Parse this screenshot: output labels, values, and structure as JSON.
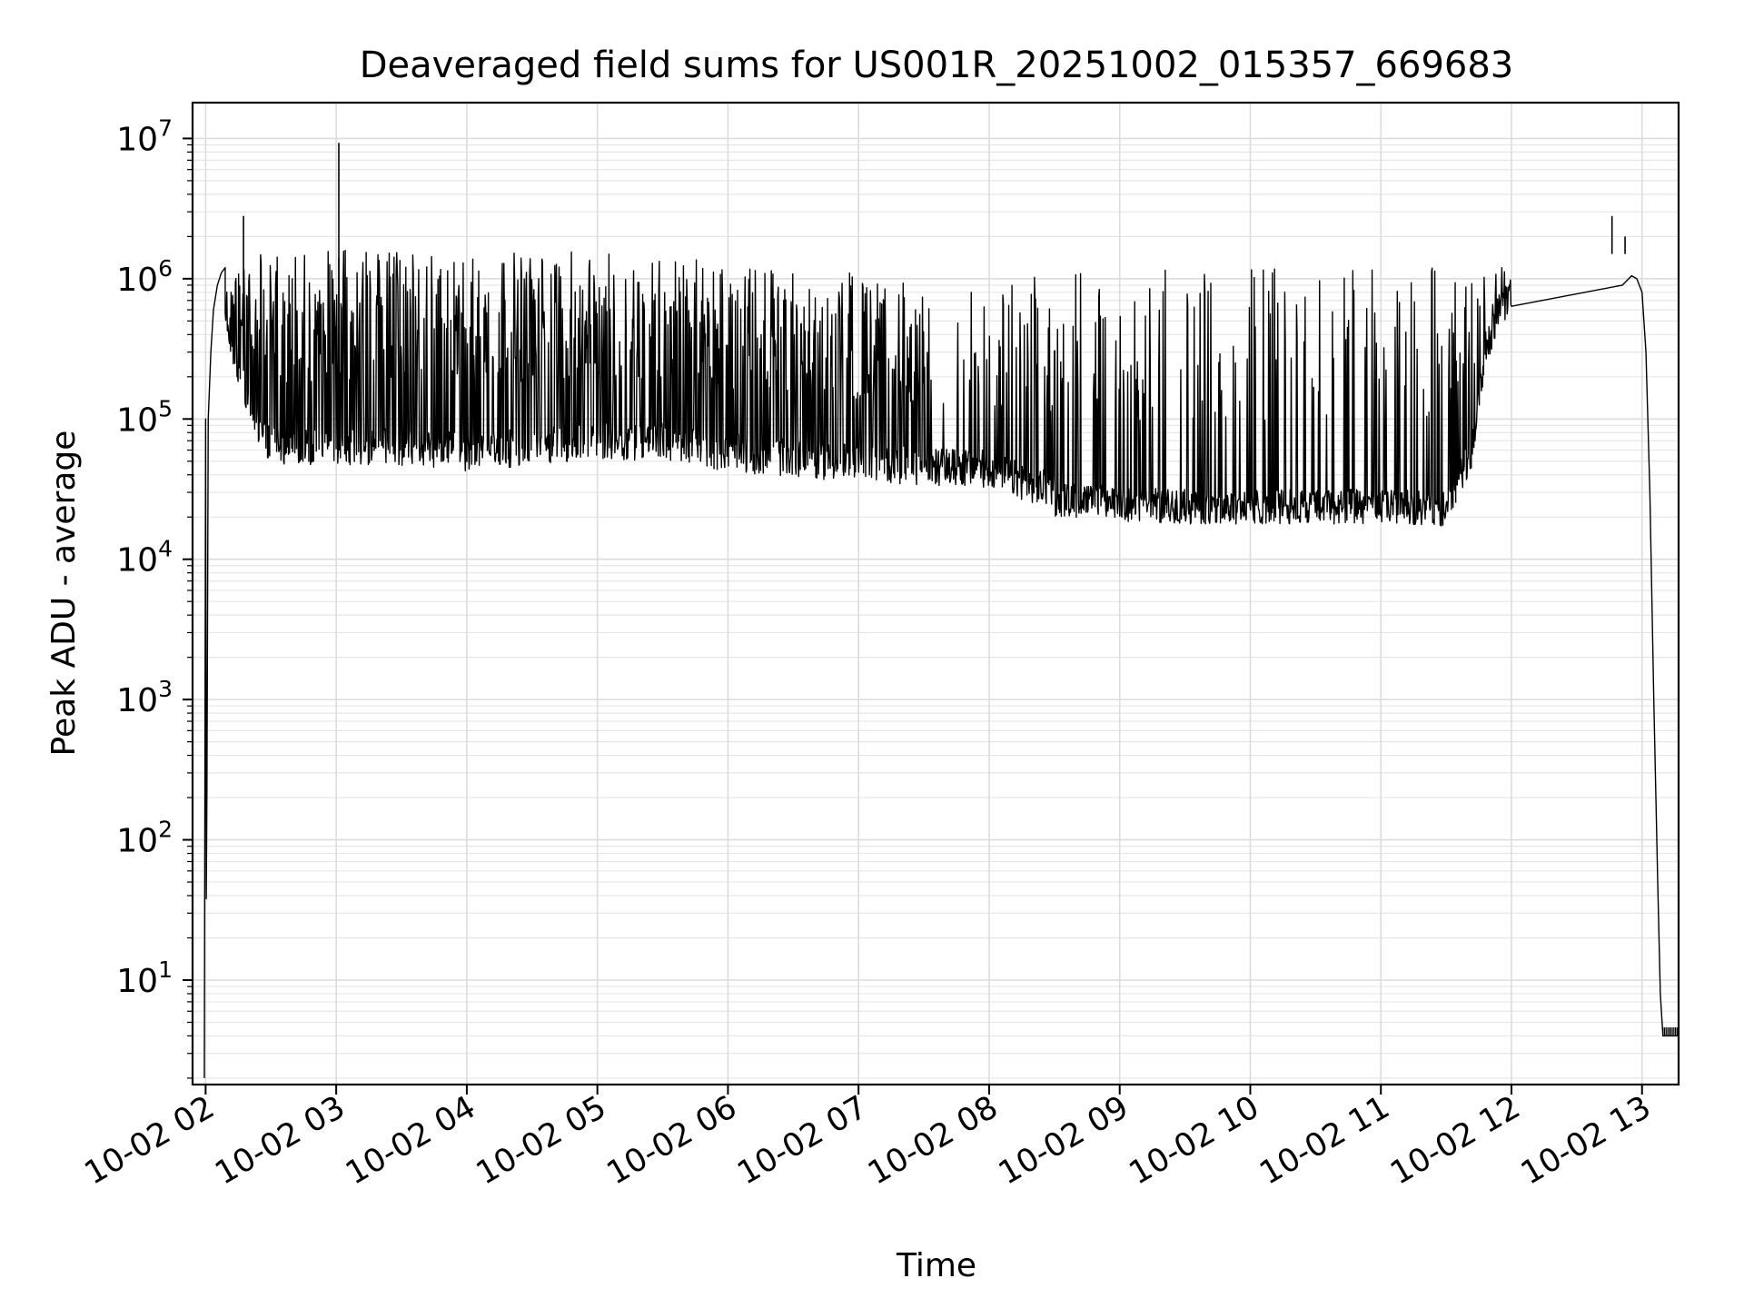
{
  "chart_data": {
    "type": "line",
    "title": "Deaveraged field sums for US001R_20251002_015357_669683",
    "xlabel": "Time",
    "ylabel": "Peak ADU - average",
    "yscale": "log",
    "ylim": [
      1.8,
      18000000
    ],
    "xlim_hours": [
      1.9,
      13.28
    ],
    "grid": true,
    "x_ticks": [
      {
        "label": "10-02 02",
        "hour": 2
      },
      {
        "label": "10-02 03",
        "hour": 3
      },
      {
        "label": "10-02 04",
        "hour": 4
      },
      {
        "label": "10-02 05",
        "hour": 5
      },
      {
        "label": "10-02 06",
        "hour": 6
      },
      {
        "label": "10-02 07",
        "hour": 7
      },
      {
        "label": "10-02 08",
        "hour": 8
      },
      {
        "label": "10-02 09",
        "hour": 9
      },
      {
        "label": "10-02 10",
        "hour": 10
      },
      {
        "label": "10-02 11",
        "hour": 11
      },
      {
        "label": "10-02 12",
        "hour": 12
      },
      {
        "label": "10-02 13",
        "hour": 13
      }
    ],
    "y_ticks": [
      {
        "base": "10",
        "exp": "1",
        "value": 10
      },
      {
        "base": "10",
        "exp": "2",
        "value": 100
      },
      {
        "base": "10",
        "exp": "3",
        "value": 1000
      },
      {
        "base": "10",
        "exp": "4",
        "value": 10000
      },
      {
        "base": "10",
        "exp": "5",
        "value": 100000
      },
      {
        "base": "10",
        "exp": "6",
        "value": 1000000
      },
      {
        "base": "10",
        "exp": "7",
        "value": 10000000
      }
    ],
    "series": [
      {
        "name": "Peak ADU - average",
        "color": "#000000",
        "envelope": {
          "hours": [
            2.0,
            2.1,
            2.2,
            2.3,
            2.4,
            2.5,
            3.0,
            3.5,
            4.0,
            4.5,
            5.0,
            5.5,
            6.0,
            6.5,
            7.0,
            7.5,
            8.0,
            8.5,
            9.0,
            9.5,
            10.0,
            10.5,
            11.0,
            11.5,
            11.7,
            11.8,
            11.9,
            12.0
          ],
          "low": [
            1000000,
            600000,
            300000,
            150000,
            80000,
            55000,
            55000,
            55000,
            50000,
            55000,
            60000,
            60000,
            50000,
            45000,
            42000,
            40000,
            38000,
            26000,
            24000,
            23000,
            23000,
            23000,
            23000,
            22000,
            60000,
            300000,
            550000,
            750000
          ],
          "high": [
            1000000,
            1200000,
            1200000,
            1400000,
            1500000,
            1600000,
            1600000,
            1600000,
            1600000,
            1550000,
            1550000,
            1500000,
            1300000,
            1200000,
            1100000,
            900000,
            800000,
            1200000,
            1200000,
            1200000,
            1200000,
            1200000,
            1200000,
            1200000,
            1200000,
            1200000,
            1200000,
            1200000
          ]
        },
        "startup": {
          "hours": [
            1.99,
            2.0,
            2.005,
            2.01,
            2.02,
            2.04,
            2.06,
            2.09,
            2.12,
            2.15
          ],
          "values": [
            2,
            100000,
            38,
            220,
            100000,
            300000,
            600000,
            900000,
            1100000,
            1200000
          ]
        },
        "spikes": [
          {
            "hour": 2.29,
            "value": 2800000
          },
          {
            "hour": 3.02,
            "value": 9300000
          },
          {
            "hour": 12.77,
            "value": 2800000
          },
          {
            "hour": 12.87,
            "value": 2000000
          }
        ],
        "tail": {
          "hours": [
            12.0,
            12.85,
            12.92,
            12.96,
            13.0,
            13.03,
            13.06,
            13.09,
            13.12,
            13.14,
            13.16,
            13.28
          ],
          "values": [
            750000,
            900000,
            1050000,
            1000000,
            800000,
            300000,
            30000,
            1000,
            50,
            8,
            4,
            4
          ]
        }
      }
    ]
  }
}
